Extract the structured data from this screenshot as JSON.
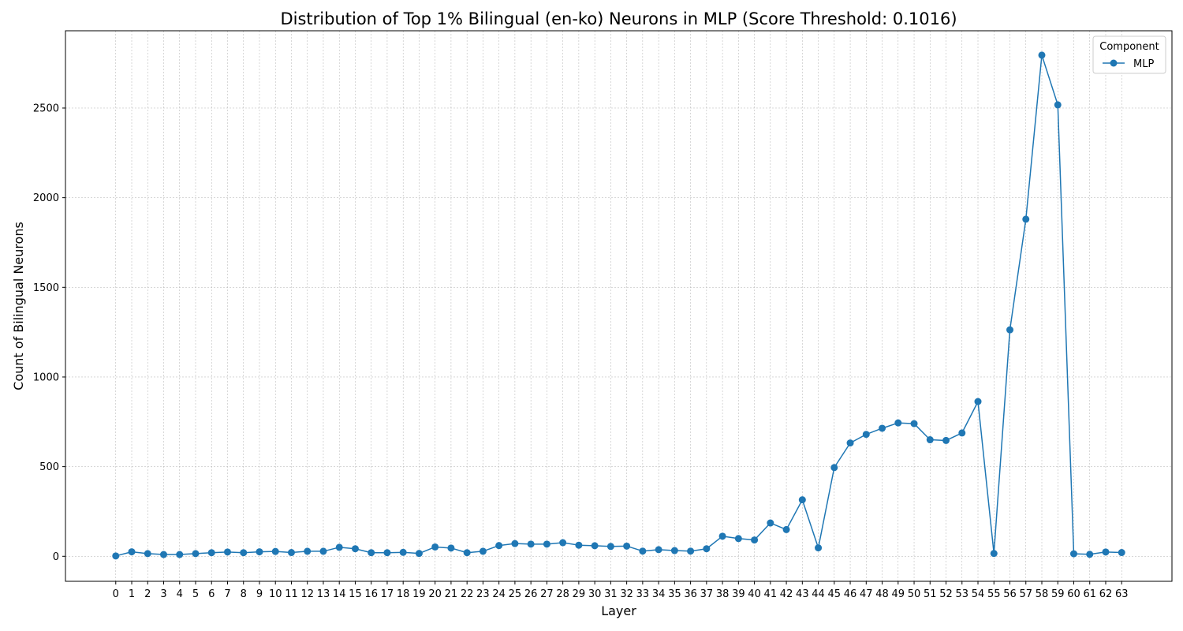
{
  "chart_data": {
    "type": "line",
    "title": "Distribution of Top 1% Bilingual (en-ko) Neurons in MLP (Score Threshold: 0.1016)",
    "xlabel": "Layer",
    "ylabel": "Count of Bilingual Neurons",
    "x": [
      0,
      1,
      2,
      3,
      4,
      5,
      6,
      7,
      8,
      9,
      10,
      11,
      12,
      13,
      14,
      15,
      16,
      17,
      18,
      19,
      20,
      21,
      22,
      23,
      24,
      25,
      26,
      27,
      28,
      29,
      30,
      31,
      32,
      33,
      34,
      35,
      36,
      37,
      38,
      39,
      40,
      41,
      42,
      43,
      44,
      45,
      46,
      47,
      48,
      49,
      50,
      51,
      52,
      53,
      54,
      55,
      56,
      57,
      58,
      59,
      60,
      61,
      62,
      63
    ],
    "xlim": [
      -3.15,
      66.15
    ],
    "ylim": [
      -139.5,
      2931
    ],
    "yticks": [
      0,
      500,
      1000,
      1500,
      2000,
      2500
    ],
    "grid": true,
    "legend": {
      "title": "Component",
      "placement": "top-right"
    },
    "series": [
      {
        "name": "MLP",
        "color": "#1f77b4",
        "marker": "circle",
        "values": [
          2,
          25,
          15,
          10,
          10,
          15,
          20,
          24,
          20,
          25,
          27,
          21,
          28,
          28,
          50,
          42,
          20,
          20,
          22,
          16,
          52,
          46,
          20,
          28,
          60,
          71,
          68,
          68,
          76,
          62,
          59,
          55,
          57,
          29,
          37,
          32,
          29,
          42,
          112,
          99,
          91,
          186,
          149,
          315,
          47,
          495,
          632,
          680,
          714,
          744,
          740,
          650,
          646,
          688,
          863,
          16,
          1263,
          1880,
          2795,
          2518,
          14,
          11,
          24,
          21
        ]
      }
    ]
  }
}
